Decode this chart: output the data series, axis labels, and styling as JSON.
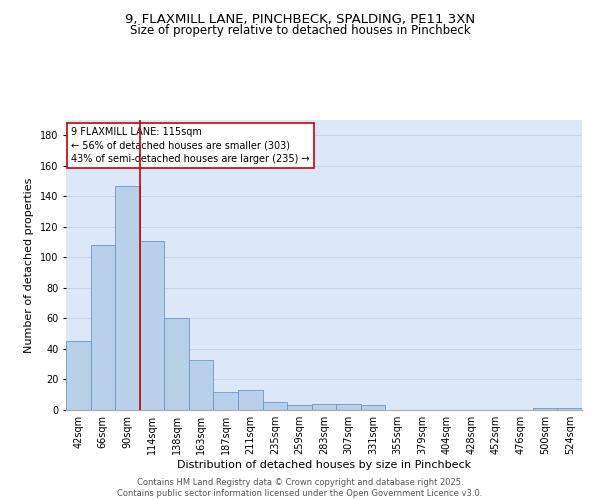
{
  "title1": "9, FLAXMILL LANE, PINCHBECK, SPALDING, PE11 3XN",
  "title2": "Size of property relative to detached houses in Pinchbeck",
  "xlabel": "Distribution of detached houses by size in Pinchbeck",
  "ylabel": "Number of detached properties",
  "categories": [
    "42sqm",
    "66sqm",
    "90sqm",
    "114sqm",
    "138sqm",
    "163sqm",
    "187sqm",
    "211sqm",
    "235sqm",
    "259sqm",
    "283sqm",
    "307sqm",
    "331sqm",
    "355sqm",
    "379sqm",
    "404sqm",
    "428sqm",
    "452sqm",
    "476sqm",
    "500sqm",
    "524sqm"
  ],
  "values": [
    45,
    108,
    147,
    111,
    60,
    33,
    12,
    13,
    5,
    3,
    4,
    4,
    3,
    0,
    0,
    0,
    0,
    0,
    0,
    1,
    1
  ],
  "bar_color": "#b8d0e8",
  "bar_edge_color": "#6699cc",
  "vline_x_index": 2.5,
  "vline_color": "#cc0000",
  "annotation_text": "9 FLAXMILL LANE: 115sqm\n← 56% of detached houses are smaller (303)\n43% of semi-detached houses are larger (235) →",
  "annotation_box_facecolor": "#ffffff",
  "annotation_box_edgecolor": "#cc0000",
  "ylim": [
    0,
    190
  ],
  "yticks": [
    0,
    20,
    40,
    60,
    80,
    100,
    120,
    140,
    160,
    180
  ],
  "grid_color": "#c8d4e8",
  "background_color": "#dce8f8",
  "footer_text": "Contains HM Land Registry data © Crown copyright and database right 2025.\nContains public sector information licensed under the Open Government Licence v3.0.",
  "title1_fontsize": 9.5,
  "title2_fontsize": 8.5,
  "xlabel_fontsize": 8,
  "ylabel_fontsize": 8,
  "tick_fontsize": 7,
  "annotation_fontsize": 7,
  "footer_fontsize": 6
}
